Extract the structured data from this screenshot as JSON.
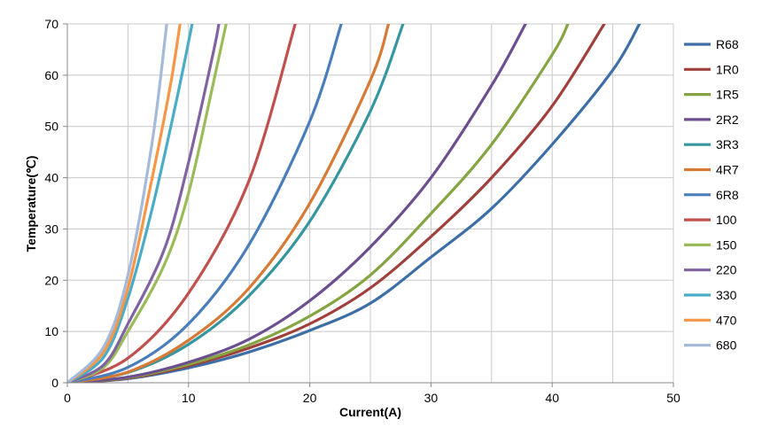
{
  "chart_data": {
    "type": "line",
    "title": "",
    "xlabel": "Current(A)",
    "ylabel": "Temperature(℃)",
    "xlim": [
      0,
      50
    ],
    "ylim": [
      0,
      70
    ],
    "x_ticks": [
      "0",
      "10",
      "20",
      "30",
      "40",
      "50"
    ],
    "y_ticks": [
      "0",
      "10",
      "20",
      "30",
      "40",
      "50",
      "60",
      "70"
    ],
    "grid": true,
    "legend_position": "right",
    "series": [
      {
        "name": "R68",
        "color": "#3d6ea5",
        "points": [
          [
            0,
            0
          ],
          [
            5,
            0.8
          ],
          [
            10,
            2.9
          ],
          [
            15,
            6.0
          ],
          [
            20,
            10.2
          ],
          [
            25,
            15.5
          ],
          [
            30,
            24.5
          ],
          [
            35,
            34.0
          ],
          [
            40,
            46.5
          ],
          [
            45,
            61.0
          ],
          [
            47.2,
            70
          ]
        ]
      },
      {
        "name": "1R0",
        "color": "#a0403d",
        "points": [
          [
            0,
            0
          ],
          [
            5,
            0.9
          ],
          [
            10,
            3.3
          ],
          [
            15,
            6.8
          ],
          [
            20,
            11.5
          ],
          [
            25,
            18.5
          ],
          [
            30,
            28.5
          ],
          [
            35,
            40.0
          ],
          [
            40,
            54.0
          ],
          [
            44.3,
            70
          ]
        ]
      },
      {
        "name": "1R5",
        "color": "#84a542",
        "points": [
          [
            0,
            0
          ],
          [
            5,
            1.0
          ],
          [
            10,
            3.6
          ],
          [
            15,
            7.4
          ],
          [
            20,
            13.0
          ],
          [
            25,
            21.0
          ],
          [
            30,
            33.0
          ],
          [
            35,
            46.5
          ],
          [
            40,
            64.0
          ],
          [
            41.3,
            70
          ]
        ]
      },
      {
        "name": "2R2",
        "color": "#6b4f8e",
        "points": [
          [
            0,
            0
          ],
          [
            5,
            1.1
          ],
          [
            10,
            4.0
          ],
          [
            15,
            8.5
          ],
          [
            20,
            16.0
          ],
          [
            25,
            26.5
          ],
          [
            30,
            40.0
          ],
          [
            35,
            58.0
          ],
          [
            37.8,
            70
          ]
        ]
      },
      {
        "name": "3R3",
        "color": "#3696a0",
        "points": [
          [
            0,
            0
          ],
          [
            5,
            2.0
          ],
          [
            10,
            7.5
          ],
          [
            15,
            17.0
          ],
          [
            20,
            31.5
          ],
          [
            25,
            53.0
          ],
          [
            27.7,
            70
          ]
        ]
      },
      {
        "name": "4R7",
        "color": "#d77a36",
        "points": [
          [
            0,
            0
          ],
          [
            5,
            2.1
          ],
          [
            10,
            8.3
          ],
          [
            15,
            18.5
          ],
          [
            20,
            35.0
          ],
          [
            25,
            59.0
          ],
          [
            26.5,
            70
          ]
        ]
      },
      {
        "name": "6R8",
        "color": "#4a7ebb",
        "points": [
          [
            0,
            0
          ],
          [
            5,
            3.0
          ],
          [
            10,
            11.5
          ],
          [
            15,
            27.0
          ],
          [
            20,
            51.0
          ],
          [
            22.6,
            70
          ]
        ]
      },
      {
        "name": "100",
        "color": "#c0504d",
        "points": [
          [
            0,
            0
          ],
          [
            5,
            4.8
          ],
          [
            10,
            17.5
          ],
          [
            15,
            39.5
          ],
          [
            18.8,
            70
          ]
        ]
      },
      {
        "name": "150",
        "color": "#9bbb59",
        "points": [
          [
            0,
            0
          ],
          [
            3,
            3.0
          ],
          [
            5,
            10.0
          ],
          [
            8,
            23.0
          ],
          [
            10,
            37.0
          ],
          [
            12,
            58.0
          ],
          [
            13.1,
            70
          ]
        ]
      },
      {
        "name": "220",
        "color": "#8064a2",
        "points": [
          [
            0,
            0
          ],
          [
            3,
            3.5
          ],
          [
            5,
            11.5
          ],
          [
            8,
            26.0
          ],
          [
            10,
            43.0
          ],
          [
            12,
            64.0
          ],
          [
            12.5,
            70
          ]
        ]
      },
      {
        "name": "330",
        "color": "#4bacc6",
        "points": [
          [
            0,
            0
          ],
          [
            3,
            5.0
          ],
          [
            5,
            16.5
          ],
          [
            7,
            34.0
          ],
          [
            9,
            55.0
          ],
          [
            10.3,
            70
          ]
        ]
      },
      {
        "name": "470",
        "color": "#f79646",
        "points": [
          [
            0,
            0
          ],
          [
            3,
            6.0
          ],
          [
            5,
            18.5
          ],
          [
            7,
            40.0
          ],
          [
            8.5,
            58.0
          ],
          [
            9.3,
            70
          ]
        ]
      },
      {
        "name": "680",
        "color": "#a5b9d8",
        "points": [
          [
            0,
            0
          ],
          [
            3,
            7.0
          ],
          [
            5,
            21.0
          ],
          [
            7,
            47.0
          ],
          [
            8.2,
            70
          ]
        ]
      }
    ]
  }
}
